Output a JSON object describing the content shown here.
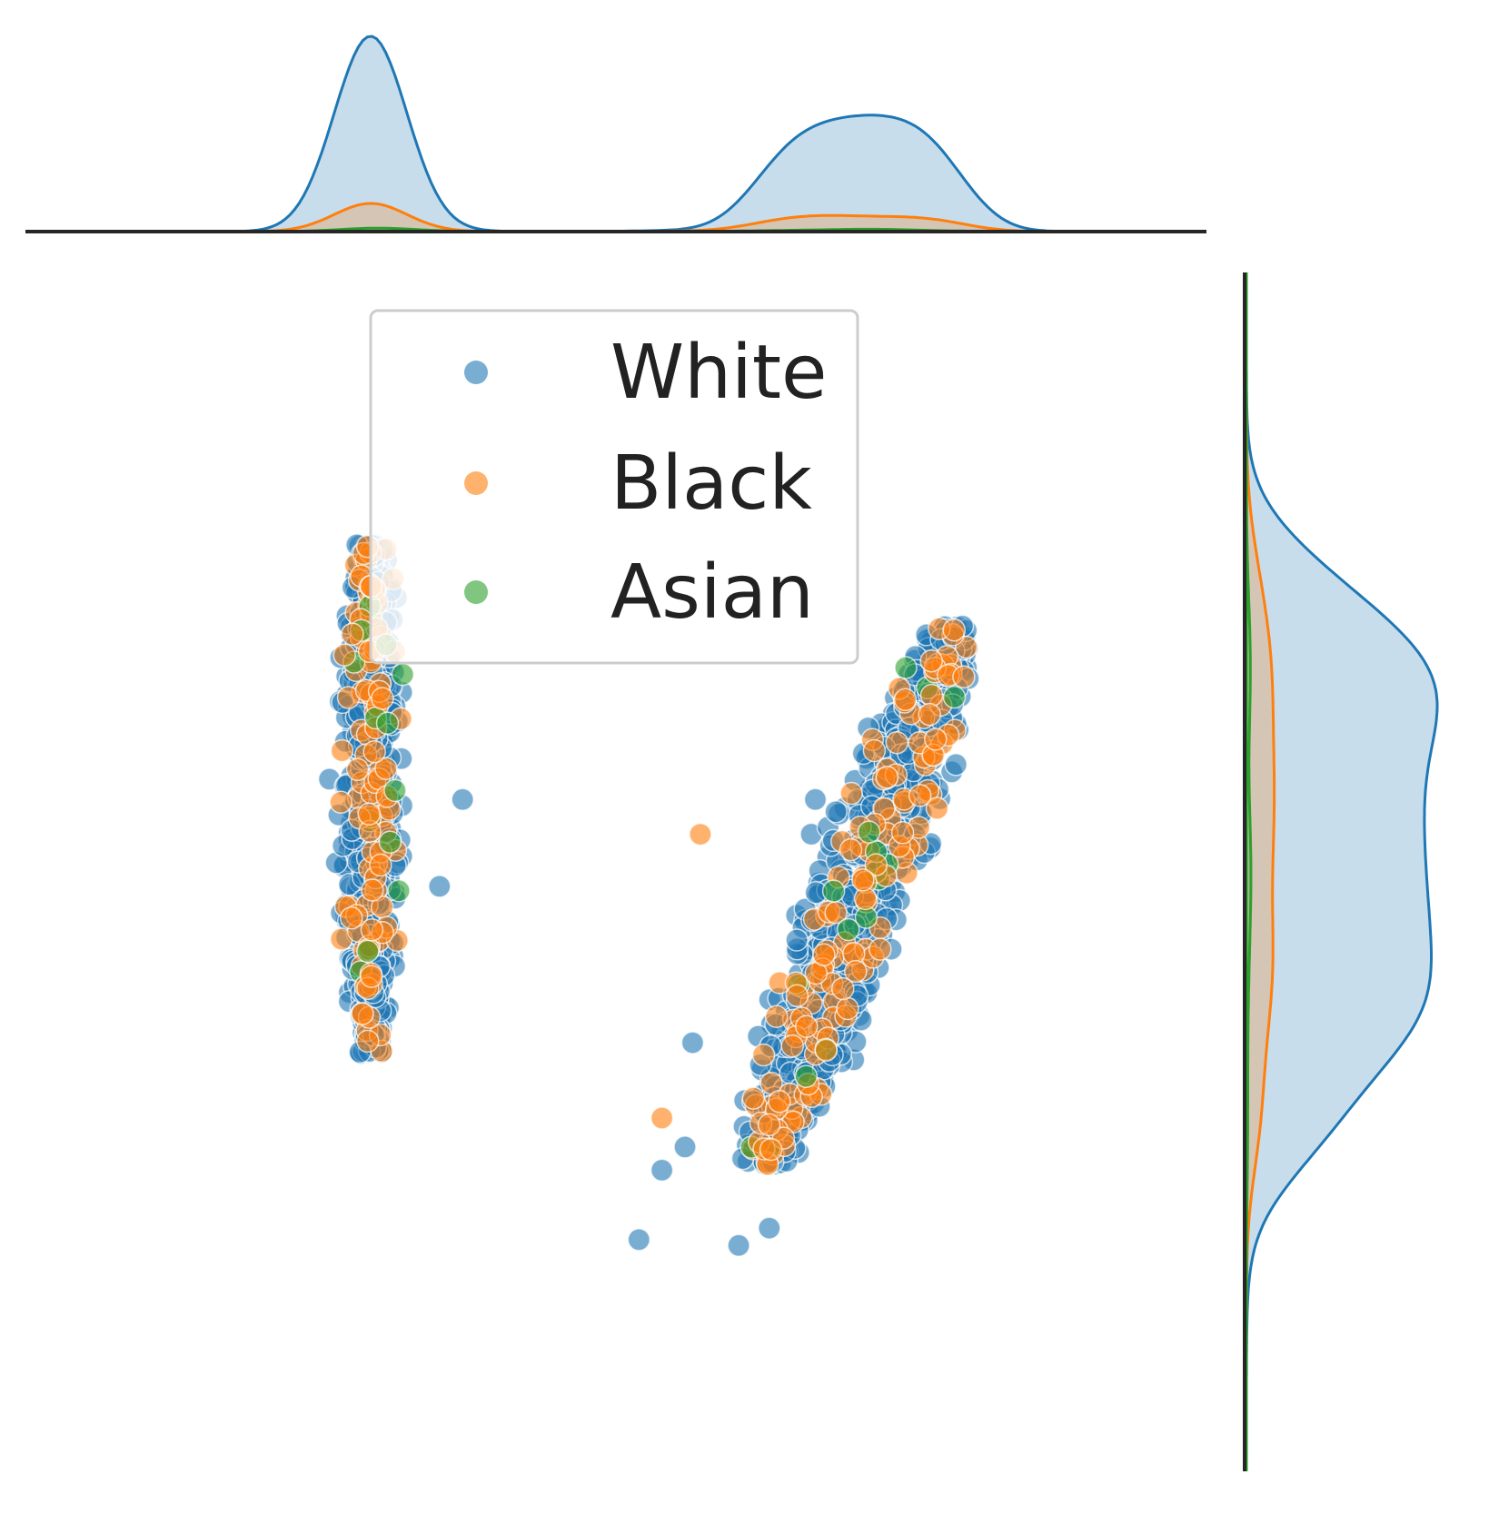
{
  "chart_data": {
    "type": "scatter",
    "title": "",
    "xlabel": "",
    "ylabel": "",
    "xlim": [
      -6.8,
      8.6
    ],
    "ylim": [
      -10.4,
      10.3
    ],
    "grid": false,
    "legend_position": "upper-center",
    "marginals": "kde",
    "point_alpha": 0.6,
    "series": [
      {
        "name": "White",
        "color": "#1f77b4",
        "clusters": [
          {
            "x_center": -2.3,
            "x_spread": 0.45,
            "y_top": 5.6,
            "y_bottom": -3.2,
            "slope_x_per_y": 0.0,
            "count": 760
          },
          {
            "x_center": 4.1,
            "x_spread": 0.75,
            "y_top": 4.2,
            "y_bottom": -5.1,
            "slope_x_per_y": 0.26,
            "count": 980
          }
        ],
        "outliers": [
          {
            "x": 1.2,
            "y": -6.4
          },
          {
            "x": 2.5,
            "y": -6.5
          },
          {
            "x": 1.5,
            "y": -5.2
          },
          {
            "x": 1.8,
            "y": -4.8
          },
          {
            "x": -1.1,
            "y": 1.2
          },
          {
            "x": -1.4,
            "y": -0.3
          },
          {
            "x": 2.9,
            "y": -6.2
          },
          {
            "x": 1.9,
            "y": -3.0
          },
          {
            "x": 3.5,
            "y": 1.2
          }
        ]
      },
      {
        "name": "Black",
        "color": "#ff7f0e",
        "clusters": [
          {
            "x_center": -2.3,
            "x_spread": 0.45,
            "y_top": 5.6,
            "y_bottom": -3.2,
            "slope_x_per_y": 0.0,
            "count": 110
          },
          {
            "x_center": 4.1,
            "x_spread": 0.75,
            "y_top": 4.2,
            "y_bottom": -5.1,
            "slope_x_per_y": 0.26,
            "count": 140
          }
        ],
        "outliers": [
          {
            "x": 1.5,
            "y": -4.3
          },
          {
            "x": 2.0,
            "y": 0.6
          },
          {
            "x": 3.0,
            "y": -4.5
          }
        ]
      },
      {
        "name": "Asian",
        "color": "#2ca02c",
        "clusters": [
          {
            "x_center": -2.3,
            "x_spread": 0.45,
            "y_top": 5.6,
            "y_bottom": -3.2,
            "slope_x_per_y": 0.0,
            "count": 14
          },
          {
            "x_center": 4.1,
            "x_spread": 0.75,
            "y_top": 4.2,
            "y_bottom": -5.1,
            "slope_x_per_y": 0.26,
            "count": 16
          }
        ],
        "outliers": []
      }
    ]
  }
}
